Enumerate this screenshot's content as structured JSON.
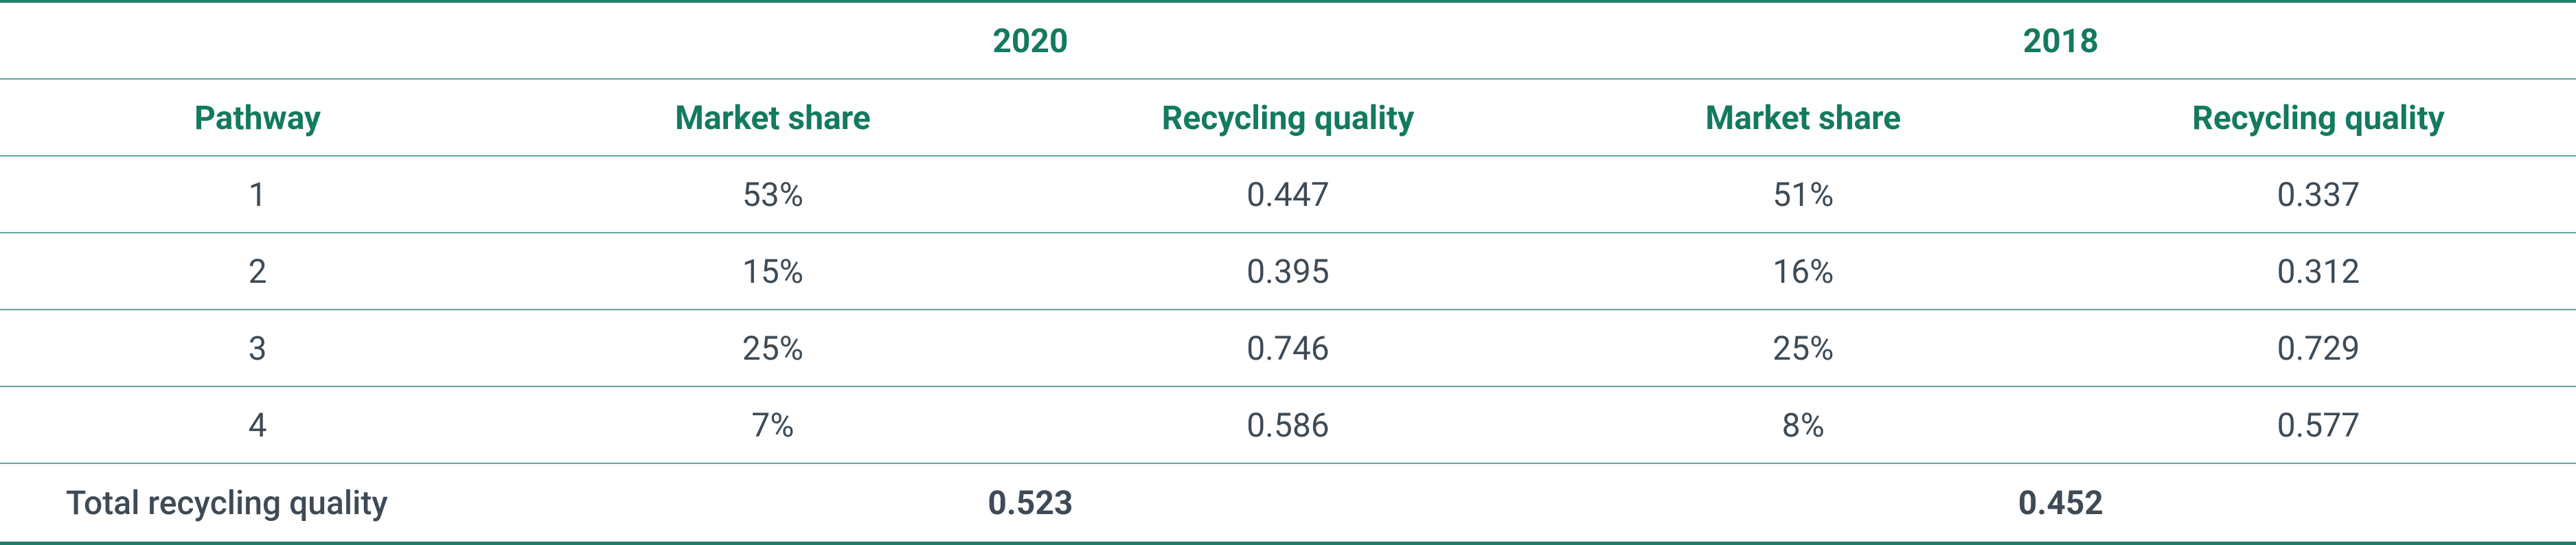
{
  "table": {
    "year_headers": [
      "2020",
      "2018"
    ],
    "columns": [
      "Pathway",
      "Market share",
      "Recycling quality",
      "Market share",
      "Recycling quality"
    ],
    "rows": [
      [
        "1",
        "53%",
        "0.447",
        "51%",
        "0.337"
      ],
      [
        "2",
        "15%",
        "0.395",
        "16%",
        "0.312"
      ],
      [
        "3",
        "25%",
        "0.746",
        "25%",
        "0.729"
      ],
      [
        "4",
        "7%",
        "0.586",
        "8%",
        "0.577"
      ]
    ],
    "total": {
      "label": "Total recycling quality",
      "values": [
        "0.523",
        "0.452"
      ]
    }
  }
}
